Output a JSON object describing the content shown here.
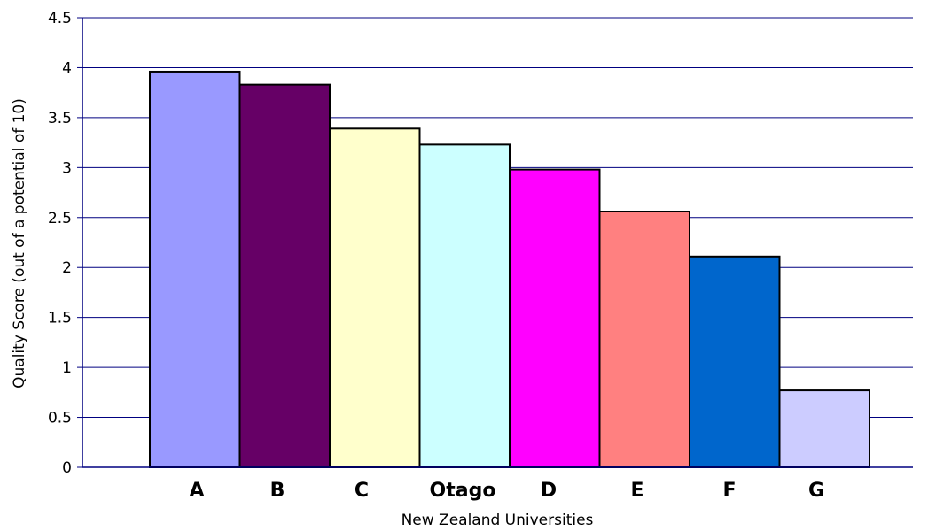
{
  "chart_data": {
    "type": "bar",
    "categories": [
      "A",
      "B",
      "C",
      "Otago",
      "D",
      "E",
      "F",
      "G"
    ],
    "values": [
      3.96,
      3.83,
      3.39,
      3.23,
      2.98,
      2.56,
      2.11,
      0.77
    ],
    "colors": [
      "#9999ff",
      "#660066",
      "#ffffcc",
      "#ccffff",
      "#ff00ff",
      "#ff8080",
      "#0066cc",
      "#ccccff"
    ],
    "title": "",
    "xlabel": "New Zealand Universities",
    "ylabel": "Quality Score (out of a potential of 10)",
    "ylim": [
      0,
      4.5
    ],
    "yticks": [
      "0",
      "0.5",
      "1",
      "1.5",
      "2",
      "2.5",
      "3",
      "3.5",
      "4",
      "4.5"
    ],
    "grid": true,
    "gridColor": "#000080",
    "bar_border_color": "#000000",
    "legend": "none"
  }
}
